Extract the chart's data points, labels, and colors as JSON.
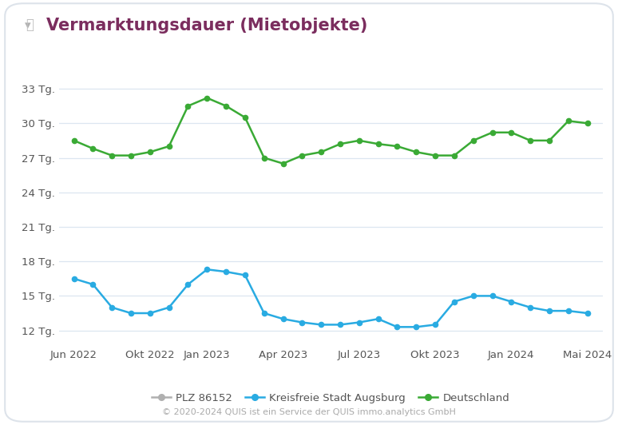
{
  "title": "Vermarktungsdauer (Mietobjekte)",
  "background_color": "#ffffff",
  "plot_bg_color": "#ffffff",
  "grid_color": "#dce6f0",
  "title_color": "#7b2d5e",
  "title_fontsize": 15,
  "ylabel_ticks": [
    "12 Tg.",
    "15 Tg.",
    "18 Tg.",
    "21 Tg.",
    "24 Tg.",
    "27 Tg.",
    "30 Tg.",
    "33 Tg."
  ],
  "ytick_values": [
    12,
    15,
    18,
    21,
    24,
    27,
    30,
    33
  ],
  "ylim": [
    10.8,
    34.8
  ],
  "x_labels": [
    "Jun 2022",
    "Okt 2022",
    "Jan 2023",
    "Apr 2023",
    "Jul 2023",
    "Okt 2023",
    "Jan 2024",
    "Mai 2024"
  ],
  "x_positions": [
    0,
    4,
    7,
    11,
    15,
    19,
    23,
    27
  ],
  "augsburg_color": "#29abe2",
  "deutschland_color": "#3aaa35",
  "plz_color": "#b0b0b0",
  "augsburg_label": "Kreisfreie Stadt Augsburg",
  "deutschland_label": "Deutschland",
  "plz_label": "PLZ 86152",
  "footer_text": "© 2020-2024 QUIS ist ein Service der QUIS immo.analytics GmbH",
  "augsburg_data": [
    16.5,
    16.0,
    14.0,
    13.5,
    13.5,
    14.0,
    16.0,
    17.3,
    17.1,
    16.8,
    13.5,
    13.0,
    12.7,
    12.5,
    12.5,
    12.7,
    13.0,
    12.3,
    12.3,
    12.5,
    14.5,
    15.0,
    15.0,
    14.5,
    14.0,
    13.7,
    13.7,
    13.5
  ],
  "deutschland_data": [
    28.5,
    27.8,
    27.2,
    27.2,
    27.5,
    28.0,
    31.5,
    32.2,
    31.5,
    30.5,
    27.0,
    26.5,
    27.2,
    27.5,
    28.2,
    28.5,
    28.2,
    28.0,
    27.5,
    27.2,
    27.2,
    28.5,
    29.2,
    29.2,
    28.5,
    28.5,
    30.2,
    30.0
  ],
  "marker_size": 4.5,
  "line_width": 1.8
}
